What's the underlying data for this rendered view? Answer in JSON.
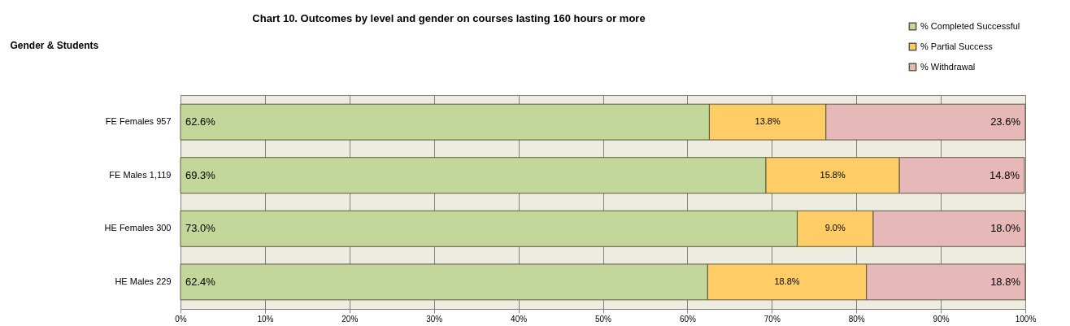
{
  "chart_data": {
    "type": "bar",
    "orientation": "horizontal",
    "stacked": true,
    "title": "Chart 10. Outcomes by level and gender on courses lasting 160 hours or more",
    "ylabel": "Gender & Students",
    "categories": [
      "FE Females 957",
      "FE Males 1,119",
      "HE Females 300",
      "HE Males 229"
    ],
    "series": [
      {
        "name": "% Completed Successful",
        "color": "#c4d79b",
        "values": [
          62.6,
          69.3,
          73.0,
          62.4
        ],
        "value_labels": [
          "62.6%",
          "69.3%",
          "73.0%",
          "62.4%"
        ]
      },
      {
        "name": "% Partial Success",
        "color": "#ffcc66",
        "values": [
          13.8,
          15.8,
          9.0,
          18.8
        ],
        "value_labels": [
          "13.8%",
          "15.8%",
          "9.0%",
          "18.8%"
        ]
      },
      {
        "name": "% Withdrawal",
        "color": "#e6b8b7",
        "values": [
          23.6,
          14.8,
          18.0,
          18.8
        ],
        "value_labels": [
          "23.6%",
          "14.8%",
          "18.0%",
          "18.8%"
        ]
      }
    ],
    "xlim": [
      0,
      100
    ],
    "xticks": [
      {
        "value": 0,
        "label": "0%"
      },
      {
        "value": 10,
        "label": "10%"
      },
      {
        "value": 20,
        "label": "20%"
      },
      {
        "value": 30,
        "label": "30%"
      },
      {
        "value": 40,
        "label": "40%"
      },
      {
        "value": 50,
        "label": "50%"
      },
      {
        "value": 60,
        "label": "60%"
      },
      {
        "value": 70,
        "label": "70%"
      },
      {
        "value": 80,
        "label": "80%"
      },
      {
        "value": 90,
        "label": "90%"
      },
      {
        "value": 100,
        "label": "100%"
      }
    ],
    "grid": "x",
    "legend": "top right"
  }
}
